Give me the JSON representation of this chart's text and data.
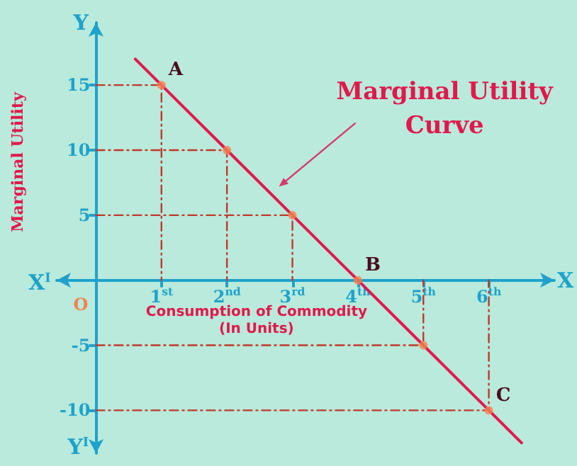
{
  "chart_data": {
    "type": "line",
    "xlabel": "Consumption of Commodity\n(In Units)",
    "ylabel": "Marginal Utility",
    "xlim": [
      -0.6,
      7
    ],
    "ylim": [
      -13.3,
      19.8
    ],
    "xticks": [
      {
        "value": 1,
        "label": "1$^{st}$"
      },
      {
        "value": 2,
        "label": "2$^{nd}$"
      },
      {
        "value": 3,
        "label": "3$^{rd}$"
      },
      {
        "value": 4,
        "label": "4$^{th}$"
      },
      {
        "value": 5,
        "label": "5$^{th}$"
      },
      {
        "value": 6,
        "label": "6$^{th}$"
      }
    ],
    "yticks": [
      15,
      10,
      5,
      -5,
      -10
    ],
    "series": [
      {
        "type": "line",
        "color": "#c0392b",
        "marker": "none",
        "line_style": "dashed",
        "x": [
          0,
          1,
          1
        ],
        "values": [
          15,
          15,
          0
        ]
      },
      {
        "type": "line",
        "color": "#c0392b",
        "marker": "none",
        "line_style": "dashed",
        "x": [
          0,
          2,
          2
        ],
        "values": [
          10,
          10,
          0
        ]
      },
      {
        "type": "line",
        "color": "#c0392b",
        "marker": "none",
        "line_style": "dashed",
        "x": [
          0,
          3,
          3
        ],
        "values": [
          5,
          5,
          0
        ]
      },
      {
        "type": "line",
        "color": "#c0392b",
        "marker": "none",
        "line_style": "dashed",
        "x": [
          0,
          5,
          5
        ],
        "values": [
          -5,
          -5,
          0
        ]
      },
      {
        "type": "line",
        "color": "#c0392b",
        "marker": "none",
        "line_style": "dashed",
        "x": [
          0,
          6,
          6
        ],
        "values": [
          -10,
          -10,
          0
        ]
      },
      {
        "type": "line",
        "color": "#e2184c",
        "marker": "none",
        "line_style": "solid",
        "x": [
          0.6,
          1,
          2,
          3,
          4,
          5,
          6,
          6.5
        ],
        "values": [
          17,
          15,
          10,
          5,
          0,
          -5,
          -10,
          -12.5
        ]
      },
      {
        "type": "scatter",
        "color": "#f5824f",
        "marker": "circle",
        "x": [
          1,
          2,
          3,
          4,
          5,
          6
        ],
        "values": [
          15,
          10,
          5,
          0,
          -5,
          -10
        ]
      }
    ],
    "annotations": [
      {
        "text": "A",
        "x": 1,
        "y": 15
      },
      {
        "text": "B",
        "x": 4,
        "y": 0
      },
      {
        "text": "C",
        "x": 6,
        "y": -10
      },
      "Marginal Utility\nCurve",
      "O",
      "X",
      "X$^{I}$",
      "Y",
      "Y$^{I}$"
    ]
  }
}
